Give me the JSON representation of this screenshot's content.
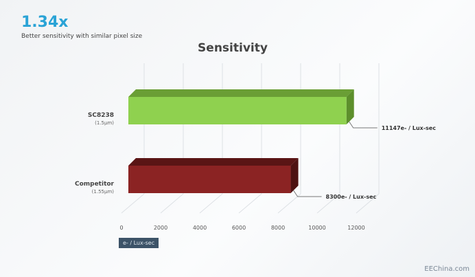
{
  "header": {
    "headline": "1.34x",
    "subtitle": "Better sensitivity with similar pixel size"
  },
  "chart_data": {
    "type": "bar",
    "orientation": "horizontal",
    "style": "3d",
    "title": "Sensitivity",
    "categories": [
      "SC8238",
      "Competitor"
    ],
    "category_sublabels": [
      "(1.5µm)",
      "(1.55µm)"
    ],
    "values": [
      11147,
      8300
    ],
    "data_labels": [
      "11147e- / Lux-sec",
      "8300e- / Lux-sec"
    ],
    "colors": [
      "#8fd14f",
      "#8b2323"
    ],
    "xlim": [
      0,
      12000
    ],
    "xticks": [
      "0",
      "2000",
      "4000",
      "6000",
      "8000",
      "10000",
      "12000"
    ],
    "xlabel": "e- / Lux-sec",
    "grid": true
  },
  "watermark": "EEChina.com"
}
